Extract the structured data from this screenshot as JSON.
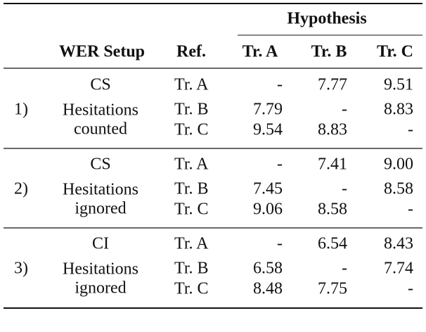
{
  "table": {
    "header": {
      "group": "Hypothesis",
      "columns": [
        "WER Setup",
        "Ref.",
        "Tr. A",
        "Tr. B",
        "Tr. C"
      ]
    },
    "groups": [
      {
        "label": "1)",
        "setup": [
          "CS",
          "Hesitations",
          "counted"
        ],
        "rows": [
          {
            "ref": "Tr. A",
            "values": [
              "-",
              "7.77",
              "9.51"
            ]
          },
          {
            "ref": "Tr. B",
            "values": [
              "7.79",
              "-",
              "8.83"
            ]
          },
          {
            "ref": "Tr. C",
            "values": [
              "9.54",
              "8.83",
              "-"
            ]
          }
        ]
      },
      {
        "label": "2)",
        "setup": [
          "CS",
          "Hesitations",
          "ignored"
        ],
        "rows": [
          {
            "ref": "Tr. A",
            "values": [
              "-",
              "7.41",
              "9.00"
            ]
          },
          {
            "ref": "Tr. B",
            "values": [
              "7.45",
              "-",
              "8.58"
            ]
          },
          {
            "ref": "Tr. C",
            "values": [
              "9.06",
              "8.58",
              "-"
            ]
          }
        ]
      },
      {
        "label": "3)",
        "setup": [
          "CI",
          "Hesitations",
          "ignored"
        ],
        "rows": [
          {
            "ref": "Tr. A",
            "values": [
              "-",
              "6.54",
              "8.43"
            ]
          },
          {
            "ref": "Tr. B",
            "values": [
              "6.58",
              "-",
              "7.74"
            ]
          },
          {
            "ref": "Tr. C",
            "values": [
              "8.48",
              "7.75",
              "-"
            ]
          }
        ]
      }
    ]
  }
}
